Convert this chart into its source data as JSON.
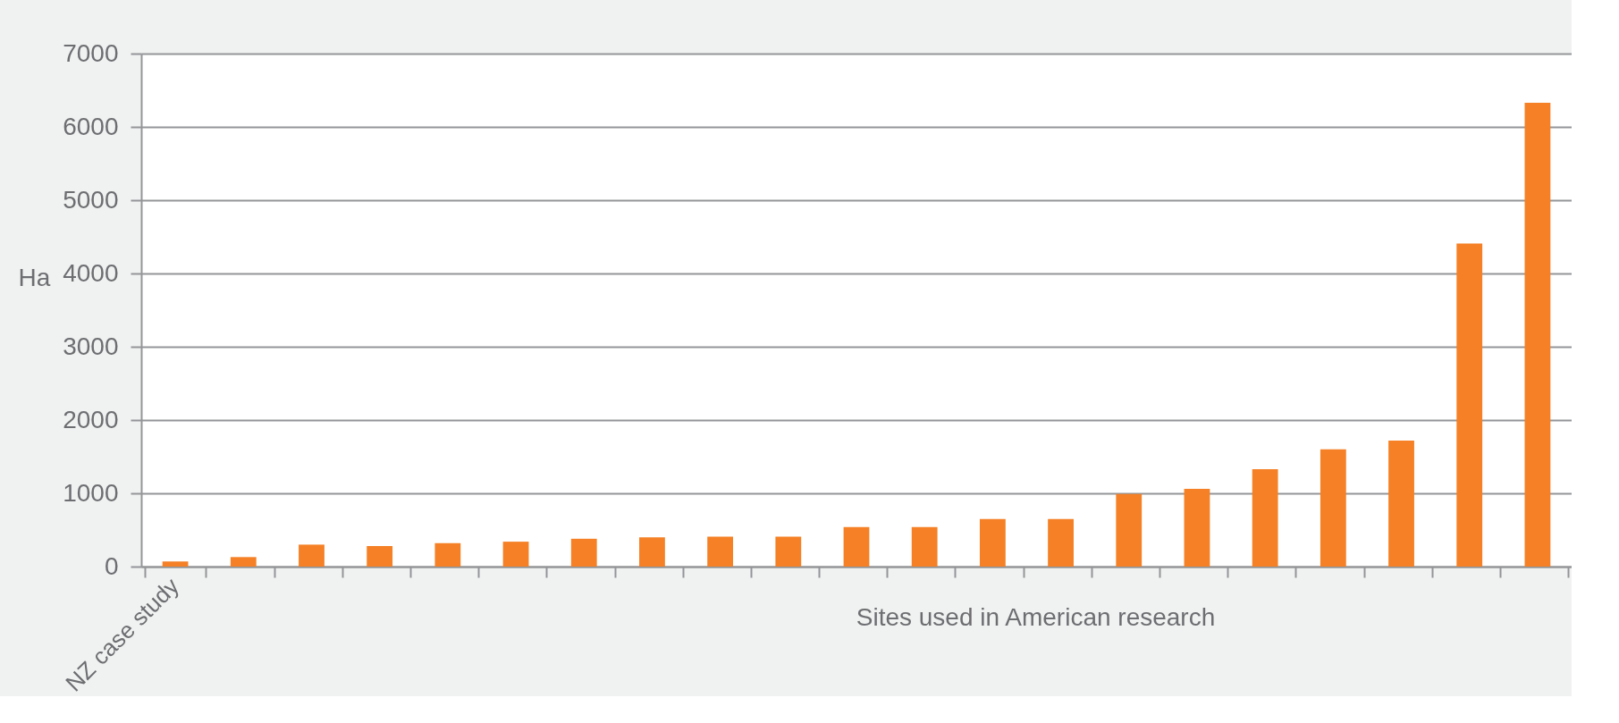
{
  "chart_data": {
    "type": "bar",
    "ylabel": "Ha",
    "xlabel": "Sites used in American research",
    "categories": [
      "NZ case study",
      null,
      null,
      null,
      null,
      null,
      null,
      null,
      null,
      null,
      null,
      null,
      null,
      null,
      null,
      null,
      null,
      null,
      null,
      null,
      null
    ],
    "values": [
      70,
      130,
      300,
      280,
      320,
      340,
      380,
      400,
      410,
      410,
      540,
      540,
      650,
      650,
      990,
      1060,
      1330,
      1600,
      1720,
      4410,
      6330
    ],
    "color": "#f58025",
    "ylim": [
      0,
      7000
    ],
    "yticks": [
      0,
      1000,
      2000,
      3000,
      4000,
      5000,
      6000,
      7000
    ],
    "grid": "y"
  }
}
